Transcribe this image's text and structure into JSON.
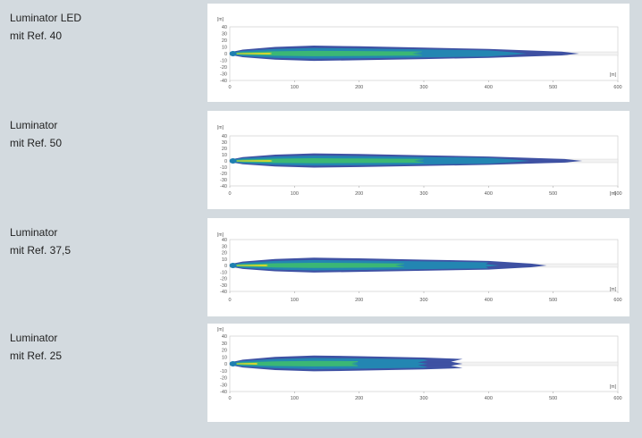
{
  "rows": [
    {
      "label_line1": "Luminator LED",
      "label_line2": "mit Ref. 40",
      "y_unit": "[m]",
      "x_unit": "[m]",
      "y_ticks": [
        "40",
        "30",
        "20",
        "10",
        "0",
        "-10",
        "-20",
        "-30",
        "-40"
      ],
      "x_ticks": [
        "0",
        "100",
        "200",
        "300",
        "400",
        "500",
        "600"
      ],
      "beam_length_m": 540
    },
    {
      "label_line1": "Luminator",
      "label_line2": "mit Ref. 50",
      "y_unit": "[m]",
      "x_unit": "[m]",
      "y_ticks": [
        "40",
        "30",
        "20",
        "10",
        "0",
        "-10",
        "-20",
        "-30",
        "-40"
      ],
      "x_ticks": [
        "0",
        "100",
        "200",
        "300",
        "400",
        "500",
        "600"
      ],
      "beam_length_m": 545
    },
    {
      "label_line1": "Luminator",
      "label_line2": "mit Ref. 37,5",
      "y_unit": "[m]",
      "x_unit": "[m]",
      "y_ticks": [
        "40",
        "30",
        "20",
        "10",
        "0",
        "-10",
        "-20",
        "-30",
        "-40"
      ],
      "x_ticks": [
        "0",
        "100",
        "200",
        "300",
        "400",
        "500",
        "600"
      ],
      "beam_length_m": 490
    },
    {
      "label_line1": "Luminator",
      "label_line2": "mit Ref. 25",
      "y_unit": "[m]",
      "x_unit": "[m]",
      "y_ticks": [
        "40",
        "30",
        "20",
        "10",
        "0",
        "-10",
        "-20",
        "-30",
        "-40"
      ],
      "x_ticks": [
        "0",
        "100",
        "200",
        "300",
        "400",
        "500",
        "600"
      ],
      "beam_length_m": 360
    }
  ],
  "colors": {
    "background": "#d3dadf",
    "panel": "#ffffff",
    "beam_outer": "#2a3f9a",
    "beam_mid": "#1f8fb5",
    "beam_core": "#3fbf6a",
    "beam_hot": "#e8d82a"
  }
}
